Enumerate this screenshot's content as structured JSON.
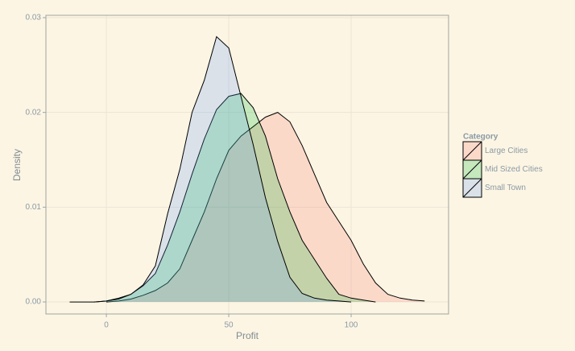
{
  "chart_data": {
    "type": "density",
    "x_label": "Profit",
    "y_label": "Density",
    "legend_title": "Category",
    "x": [
      -15,
      -10,
      -5,
      0,
      5,
      10,
      15,
      20,
      25,
      30,
      35,
      40,
      45,
      50,
      55,
      60,
      65,
      70,
      75,
      80,
      85,
      90,
      95,
      100,
      105,
      110,
      115,
      120,
      125,
      130
    ],
    "series": [
      {
        "name": "Large Cities",
        "color": "#F8766D",
        "values": [
          null,
          null,
          null,
          0,
          0.0001,
          0.0003,
          0.0007,
          0.0012,
          0.002,
          0.0035,
          0.0065,
          0.0095,
          0.013,
          0.016,
          0.0175,
          0.0185,
          0.0195,
          0.02,
          0.019,
          0.0165,
          0.0135,
          0.0105,
          0.0085,
          0.0065,
          0.004,
          0.002,
          0.0008,
          0.0004,
          0.0002,
          0.0001
        ]
      },
      {
        "name": "Mid Sized Cities",
        "color": "#00BA38",
        "values": [
          null,
          null,
          0,
          0.0001,
          0.0004,
          0.0008,
          0.0017,
          0.003,
          0.006,
          0.0095,
          0.0135,
          0.0172,
          0.0203,
          0.0217,
          0.022,
          0.0205,
          0.0175,
          0.013,
          0.0095,
          0.0065,
          0.0045,
          0.0025,
          0.0008,
          0.0004,
          0.0002,
          0,
          null,
          null,
          null,
          null
        ]
      },
      {
        "name": "Small Town",
        "color": "#619CFF",
        "values": [
          0,
          0,
          0,
          0.0001,
          0.0003,
          0.0008,
          0.0018,
          0.0038,
          0.0093,
          0.014,
          0.02,
          0.0234,
          0.028,
          0.0268,
          0.0217,
          0.0166,
          0.011,
          0.0064,
          0.0026,
          0.0009,
          0.0004,
          0.0002,
          0.0001,
          0,
          null,
          null,
          null,
          null,
          null,
          null
        ]
      }
    ],
    "xlim": [
      -24.7,
      139.8
    ],
    "ylim": [
      -0.00127,
      0.03025
    ],
    "xticks": [
      0,
      50,
      100
    ],
    "yticks": [
      {
        "value": 0,
        "label": "0.00"
      },
      {
        "value": 0.01,
        "label": "0.01"
      },
      {
        "value": 0.02,
        "label": "0.02"
      },
      {
        "value": 0.03,
        "label": "0.03"
      }
    ],
    "grid": true
  }
}
